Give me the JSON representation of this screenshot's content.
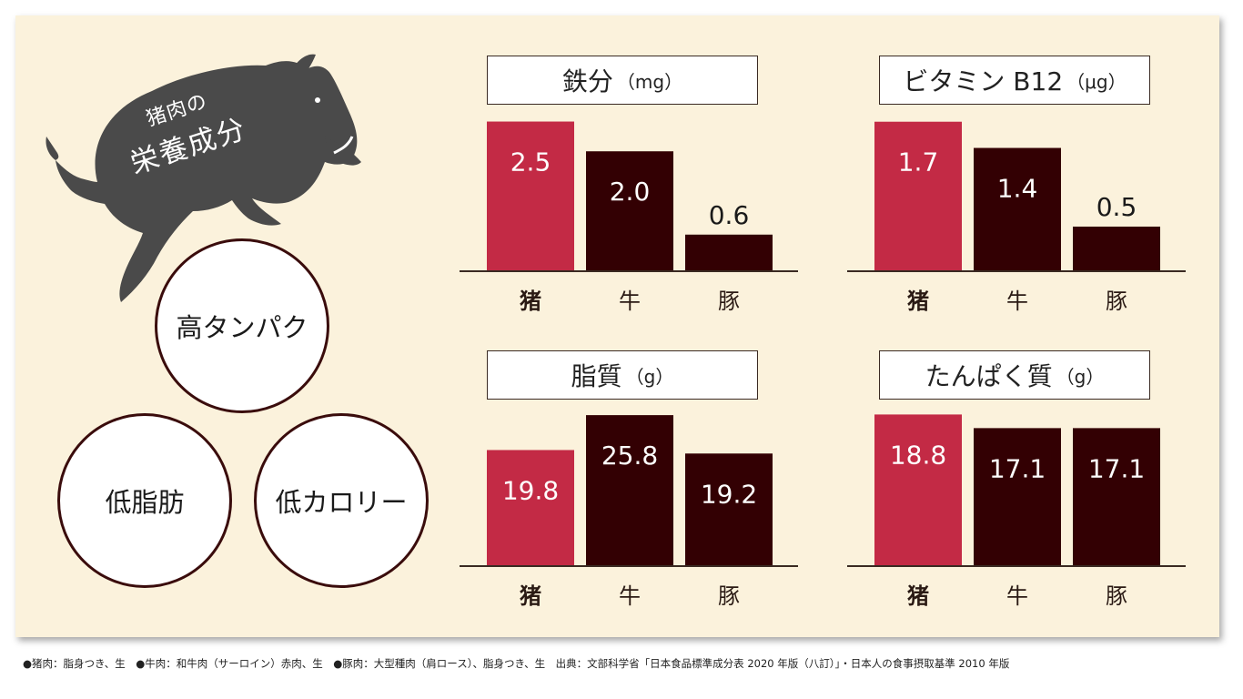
{
  "badge": {
    "line1": "猪肉の",
    "line2": "栄養成分"
  },
  "features": [
    "高タンパク",
    "低脂肪",
    "低カロリー"
  ],
  "colors": {
    "boar_bar": "#c32a45",
    "other_bar": "#330003",
    "panel": "#fbf2dc",
    "boar_fill": "#4a4a4a"
  },
  "chart_data": [
    {
      "type": "bar",
      "title": "鉄分",
      "unit": "（mg）",
      "categories": [
        "猪",
        "牛",
        "豚"
      ],
      "values": [
        2.5,
        2.0,
        0.6
      ],
      "ylim": [
        0,
        2.6
      ]
    },
    {
      "type": "bar",
      "title": "ビタミン B12",
      "unit": "（μg）",
      "categories": [
        "猪",
        "牛",
        "豚"
      ],
      "values": [
        1.7,
        1.4,
        0.5
      ],
      "ylim": [
        0,
        1.77
      ]
    },
    {
      "type": "bar",
      "title": "脂質",
      "unit": "（g）",
      "categories": [
        "猪",
        "牛",
        "豚"
      ],
      "values": [
        19.8,
        25.8,
        19.2
      ],
      "ylim": [
        0,
        26.6
      ]
    },
    {
      "type": "bar",
      "title": "たんぱく質",
      "unit": "（g）",
      "categories": [
        "猪",
        "牛",
        "豚"
      ],
      "values": [
        18.8,
        17.1,
        17.1
      ],
      "ylim": [
        0,
        19.3
      ]
    }
  ],
  "footnote": "●猪肉：脂身つき、生　●牛肉：和牛肉（サーロイン）赤肉、生　●豚肉：大型種肉（肩ロース）、脂身つき、生　出典：文部科学省「日本食品標準成分表 2020 年版（八訂）」・日本人の食事摂取基準 2010 年版"
}
